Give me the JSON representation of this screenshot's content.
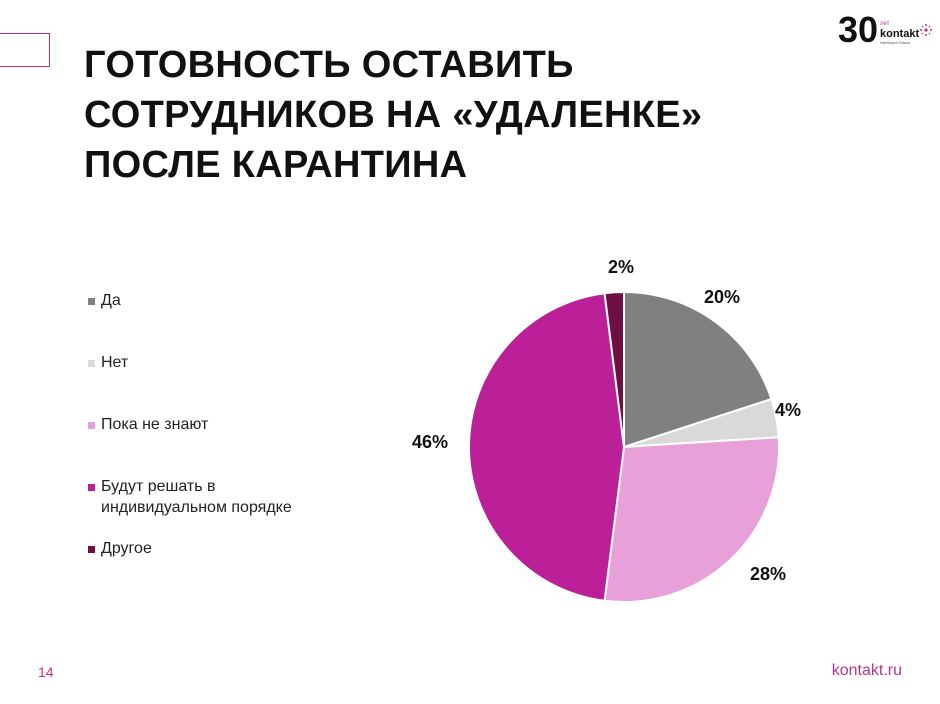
{
  "slide": {
    "title_lines": [
      "ГОТОВНОСТЬ ОСТАВИТЬ",
      "СОТРУДНИКОВ НА «УДАЛЕНКЕ»",
      "ПОСЛЕ КАРАНТИНА"
    ],
    "page_number": "14",
    "site": "kontakt.ru",
    "logo": {
      "number": "30",
      "sub": "лет",
      "brand": "kontakt",
      "tagline": "InterSearch Russia"
    }
  },
  "colors": {
    "accent": "#b5338a"
  },
  "chart_data": {
    "type": "pie",
    "title": "",
    "legend_position": "left",
    "slices": [
      {
        "label": "Да",
        "value": 20,
        "value_label": "20%",
        "color": "#808080"
      },
      {
        "label": "Нет",
        "value": 4,
        "value_label": "4%",
        "color": "#d9d9d9"
      },
      {
        "label": "Пока не знают",
        "value": 28,
        "value_label": "28%",
        "color": "#e8a0d8"
      },
      {
        "label": "Будут решать в индивидуальном порядке",
        "value": 46,
        "value_label": "46%",
        "color": "#bb2099"
      },
      {
        "label": "Другое",
        "value": 2,
        "value_label": "2%",
        "color": "#6e1042"
      }
    ]
  }
}
